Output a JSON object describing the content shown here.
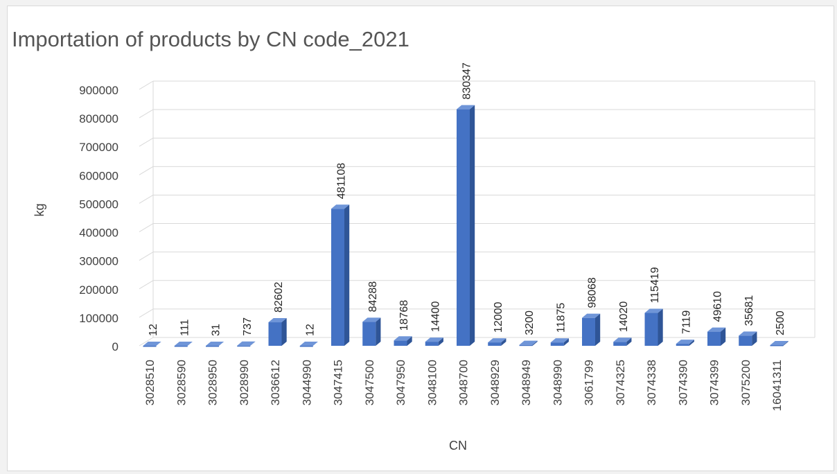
{
  "chart_data": {
    "type": "bar",
    "title": "Importation of products by CN code_2021",
    "xlabel": "CN",
    "ylabel": "kg",
    "ylim": [
      0,
      900000
    ],
    "yticks": [
      0,
      100000,
      200000,
      300000,
      400000,
      500000,
      600000,
      700000,
      800000,
      900000
    ],
    "grid": true,
    "style": "3d-column",
    "colors": {
      "bar_front": "#4472c4",
      "bar_side": "#2f5597",
      "bar_top": "#6f95d8",
      "grid": "#d9d9d9"
    },
    "categories": [
      "3028510",
      "3028590",
      "3028950",
      "3028990",
      "3036612",
      "3044990",
      "3047415",
      "3047500",
      "3047950",
      "3048100",
      "3048700",
      "3048929",
      "3048949",
      "3048990",
      "3061799",
      "3074325",
      "3074338",
      "3074390",
      "3074399",
      "3075200",
      "16041311"
    ],
    "values": [
      12,
      111,
      31,
      737,
      82602,
      12,
      481108,
      84288,
      18768,
      14400,
      830347,
      12000,
      3200,
      11875,
      98068,
      14020,
      115419,
      7119,
      49610,
      35681,
      2500
    ]
  }
}
